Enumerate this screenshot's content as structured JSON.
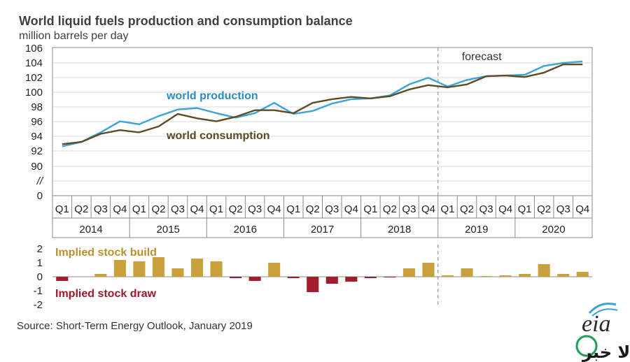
{
  "title": "World liquid fuels production and consumption balance",
  "subtitle": "million barrels per day",
  "source": "Source: Short-Term Energy Outlook, January 2019",
  "brand": {
    "eia": "eia",
    "watermark": "کالا خبر"
  },
  "colors": {
    "production": "#3aa3d8",
    "consumption": "#5e4c24",
    "build": "#c9a13c",
    "draw": "#a11c2c",
    "build_label": "#b8912e",
    "draw_label": "#9c1a2a",
    "prod_label": "#2a8cc8",
    "cons_label": "#5a4a22"
  },
  "chart_data": [
    {
      "type": "line",
      "title": "World liquid fuels production and consumption balance",
      "ylabel": "million barrels per day",
      "ylim": [
        88,
        106
      ],
      "yticks": [
        "106",
        "104",
        "102",
        "100",
        "98",
        "96",
        "94",
        "92",
        "90",
        "//",
        "0"
      ],
      "axis_break": true,
      "grid": "horizontal",
      "forecast_label": "forecast",
      "forecast_starts": "2019 Q1",
      "quarters": [
        "Q1",
        "Q2",
        "Q3",
        "Q4",
        "Q1",
        "Q2",
        "Q3",
        "Q4",
        "Q1",
        "Q2",
        "Q3",
        "Q4",
        "Q1",
        "Q2",
        "Q3",
        "Q4",
        "Q1",
        "Q2",
        "Q3",
        "Q4",
        "Q1",
        "Q2",
        "Q3",
        "Q4",
        "Q1",
        "Q2",
        "Q3",
        "Q4"
      ],
      "years": [
        "2014",
        "2015",
        "2016",
        "2017",
        "2018",
        "2019",
        "2020"
      ],
      "series": [
        {
          "name": "world production",
          "values": [
            92.7,
            93.3,
            94.6,
            96.1,
            95.7,
            96.8,
            97.7,
            97.9,
            97.2,
            96.6,
            97.2,
            98.6,
            97.1,
            97.5,
            98.5,
            99.1,
            99.2,
            99.6,
            101.1,
            102.0,
            100.8,
            101.7,
            102.2,
            102.3,
            102.4,
            103.6,
            104.0,
            104.2
          ]
        },
        {
          "name": "world consumption",
          "values": [
            93.0,
            93.3,
            94.4,
            94.9,
            94.6,
            95.4,
            97.1,
            96.5,
            96.1,
            96.7,
            97.6,
            97.6,
            97.2,
            98.6,
            99.1,
            99.4,
            99.2,
            99.5,
            100.4,
            101.0,
            100.7,
            101.1,
            102.2,
            102.3,
            102.1,
            102.7,
            103.8,
            103.8
          ]
        }
      ]
    },
    {
      "type": "bar",
      "ylim": [
        -2,
        2
      ],
      "yticks": [
        "2",
        "1",
        "0",
        "-1",
        "-2"
      ],
      "series": [
        {
          "name": "Implied stock build / draw",
          "values": [
            -0.3,
            0.0,
            0.2,
            1.2,
            1.1,
            1.4,
            0.6,
            1.3,
            1.1,
            -0.1,
            -0.3,
            1.0,
            -0.1,
            -1.1,
            -0.5,
            -0.35,
            -0.1,
            -0.05,
            0.6,
            1.0,
            0.1,
            0.6,
            0.05,
            0.1,
            0.2,
            0.9,
            0.2,
            0.35
          ]
        }
      ],
      "annotations": {
        "build": "Implied stock  build",
        "draw": "Implied stock draw"
      }
    }
  ]
}
